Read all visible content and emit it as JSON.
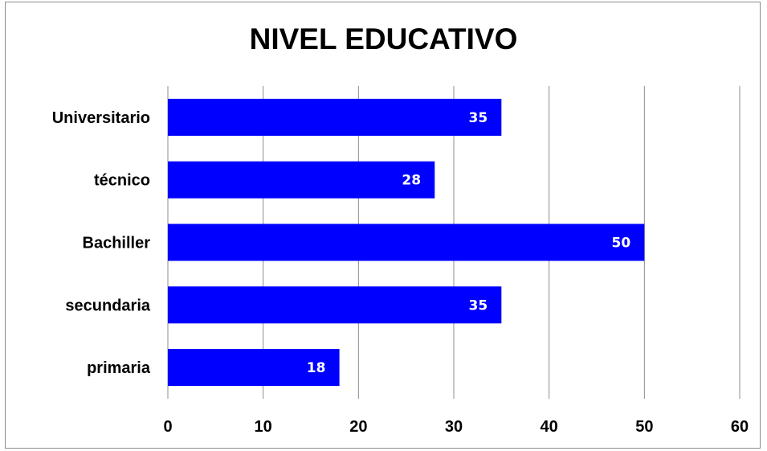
{
  "chart_data": {
    "type": "bar",
    "orientation": "horizontal",
    "title": "NIVEL EDUCATIVO",
    "categories": [
      "Universitario",
      "técnico",
      "Bachiller",
      "secundaria",
      "primaria"
    ],
    "values": [
      35,
      28,
      50,
      35,
      18
    ],
    "xlim": [
      0,
      60
    ],
    "x_ticks": [
      "0",
      "10",
      "20",
      "30",
      "40",
      "50",
      "60"
    ],
    "xlabel": "",
    "ylabel": "",
    "grid": "vertical",
    "bar_color": "#0000ff",
    "data_labels": true
  }
}
